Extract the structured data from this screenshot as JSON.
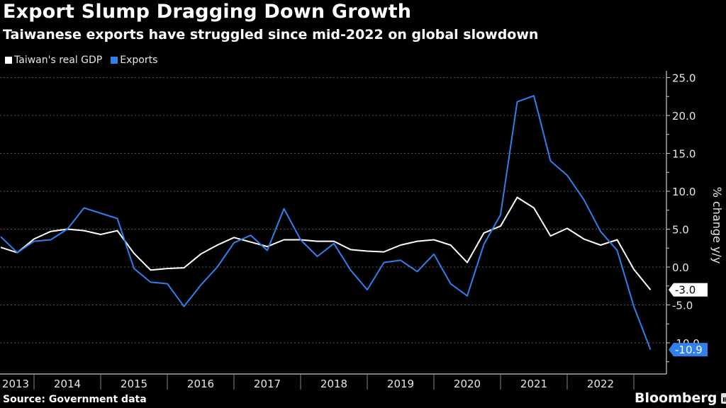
{
  "header": {
    "title": "Export Slump Dragging Down Growth",
    "subtitle": "Taiwanese exports have struggled since mid-2022 on global slowdown"
  },
  "footer": {
    "source": "Source: Government data",
    "brand": "Bloomberg"
  },
  "colors": {
    "background": "#000000",
    "gdp": "#ffffff",
    "exports": "#2f80ed",
    "grid": "#555555",
    "axis": "#cccccc"
  },
  "chart_data": {
    "type": "line",
    "title": "Export Slump Dragging Down Growth",
    "subtitle": "Taiwanese exports have struggled since mid-2022 on global slowdown",
    "xlabel": "",
    "ylabel": "% change y/y",
    "ylim": [
      -14,
      26
    ],
    "yticks": [
      25.0,
      20.0,
      15.0,
      10.0,
      5.0,
      0.0,
      -5.0,
      -10.0
    ],
    "ytick_labels": [
      "25.0",
      "20.0",
      "15.0",
      "10.0",
      "5.0",
      "0.0",
      "-5.0",
      "-10.0"
    ],
    "grid": true,
    "legend_position": "top-left",
    "y_axis_side": "right",
    "x_year_labels": [
      "2013",
      "2014",
      "2015",
      "2016",
      "2017",
      "2018",
      "2019",
      "2020",
      "2021",
      "2022"
    ],
    "x": [
      "2013-Q2",
      "2013-Q3",
      "2013-Q4",
      "2014-Q1",
      "2014-Q2",
      "2014-Q3",
      "2014-Q4",
      "2015-Q1",
      "2015-Q2",
      "2015-Q3",
      "2015-Q4",
      "2016-Q1",
      "2016-Q2",
      "2016-Q3",
      "2016-Q4",
      "2017-Q1",
      "2017-Q2",
      "2017-Q3",
      "2017-Q4",
      "2018-Q1",
      "2018-Q2",
      "2018-Q3",
      "2018-Q4",
      "2019-Q1",
      "2019-Q2",
      "2019-Q3",
      "2019-Q4",
      "2020-Q1",
      "2020-Q2",
      "2020-Q3",
      "2020-Q4",
      "2021-Q1",
      "2021-Q2",
      "2021-Q3",
      "2021-Q4",
      "2022-Q1",
      "2022-Q2",
      "2022-Q3",
      "2022-Q4",
      "2023-Q1"
    ],
    "series": [
      {
        "name": "Taiwan's real GDP",
        "color": "#ffffff",
        "values": [
          2.6,
          1.9,
          3.7,
          4.7,
          5.0,
          4.8,
          4.3,
          4.8,
          1.8,
          -0.4,
          -0.2,
          -0.1,
          1.7,
          2.9,
          3.9,
          3.3,
          2.7,
          3.6,
          3.6,
          3.4,
          3.4,
          2.3,
          2.1,
          2.0,
          2.9,
          3.4,
          3.6,
          2.9,
          0.6,
          4.5,
          5.4,
          9.2,
          7.8,
          4.1,
          5.1,
          3.7,
          2.9,
          3.6,
          -0.3,
          -3.0
        ],
        "last_value_label": "-3.0"
      },
      {
        "name": "Exports",
        "color": "#2f80ed",
        "values": [
          4.0,
          1.9,
          3.4,
          3.6,
          5.0,
          7.8,
          7.1,
          6.4,
          -0.2,
          -2.0,
          -2.2,
          -5.2,
          -2.4,
          0.0,
          3.2,
          4.2,
          2.2,
          7.7,
          3.6,
          1.4,
          3.1,
          -0.4,
          -3.0,
          0.6,
          0.9,
          -0.6,
          1.7,
          -2.2,
          -3.8,
          3.0,
          6.9,
          21.8,
          22.6,
          14.0,
          12.1,
          8.9,
          4.7,
          2.2,
          -5.2,
          -10.9
        ],
        "last_value_label": "-10.9"
      }
    ]
  }
}
